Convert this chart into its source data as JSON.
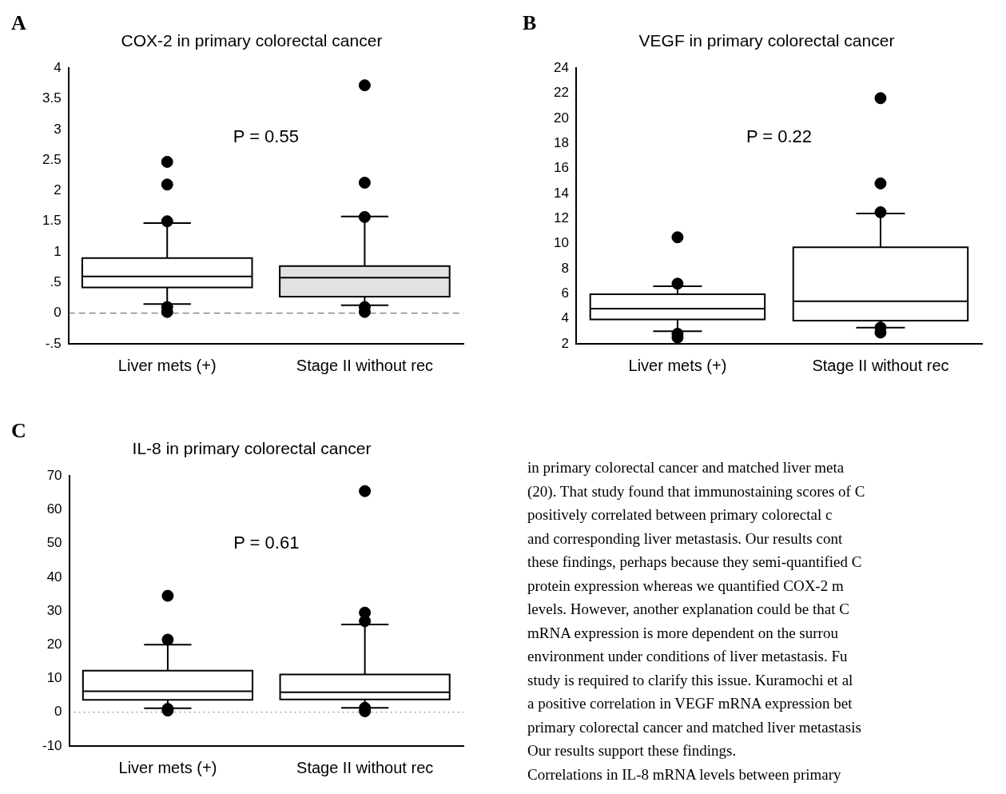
{
  "chart_data": [
    {
      "type": "box",
      "title": "COX-2 in primary colorectal cancer",
      "annotations": [
        "A",
        "P = 0.55"
      ],
      "categories": [
        "Liver mets (+)",
        "Stage II without rec"
      ],
      "colors": [
        "#ffffff",
        "#e2e2e2"
      ],
      "marker": "circle",
      "boxes": [
        {
          "low": 0.15,
          "q1": 0.42,
          "median": 0.6,
          "q3": 0.9,
          "high": 1.47,
          "outliers": [
            2.47,
            2.1,
            1.5,
            0.1,
            0.02
          ]
        },
        {
          "low": 0.13,
          "q1": 0.27,
          "median": 0.58,
          "q3": 0.77,
          "high": 1.58,
          "outliers": [
            3.72,
            2.13,
            1.57,
            0.1,
            0.02
          ]
        }
      ],
      "ylim": [
        -0.5,
        4
      ],
      "yticks": [
        {
          "value": -0.5,
          "label": "-.5"
        },
        0,
        {
          "value": 0.5,
          "label": ".5"
        },
        1,
        1.5,
        2,
        2.5,
        3,
        3.5,
        4
      ],
      "ref_lines": [
        {
          "axis": "y",
          "value": 0,
          "line_style": "dashed",
          "color": "#555555"
        }
      ]
    },
    {
      "type": "box",
      "title": "VEGF in primary colorectal cancer",
      "annotations": [
        "B",
        "P = 0.22"
      ],
      "categories": [
        "Liver mets (+)",
        "Stage II without rec"
      ],
      "colors": [
        "#ffffff",
        "#ffffff"
      ],
      "marker": "circle",
      "boxes": [
        {
          "low": 3.0,
          "q1": 3.95,
          "median": 4.8,
          "q3": 5.95,
          "high": 6.6,
          "outliers": [
            10.5,
            6.8,
            2.8,
            2.5
          ]
        },
        {
          "low": 3.3,
          "q1": 3.85,
          "median": 5.4,
          "q3": 9.7,
          "high": 12.4,
          "outliers": [
            21.6,
            14.8,
            12.5,
            3.3,
            2.9
          ]
        }
      ],
      "ylim": [
        2,
        24
      ],
      "yticks": [
        2,
        4,
        6,
        8,
        10,
        12,
        14,
        16,
        18,
        20,
        22,
        24
      ]
    },
    {
      "type": "box",
      "title": "IL-8 in primary colorectal cancer",
      "annotations": [
        "C",
        "P = 0.61"
      ],
      "categories": [
        "Liver mets (+)",
        "Stage II without rec"
      ],
      "colors": [
        "#ffffff",
        "#ffffff"
      ],
      "marker": "circle",
      "boxes": [
        {
          "low": 1.2,
          "q1": 3.7,
          "median": 6.2,
          "q3": 12.3,
          "high": 20,
          "outliers": [
            34.5,
            21.5,
            1,
            0.5
          ]
        },
        {
          "low": 1.3,
          "q1": 3.8,
          "median": 5.9,
          "q3": 11.2,
          "high": 26,
          "outliers": [
            65.5,
            29.5,
            27,
            1.3,
            0.3
          ]
        }
      ],
      "ylim": [
        -10,
        70
      ],
      "yticks": [
        -10,
        0,
        10,
        20,
        30,
        40,
        50,
        60,
        70
      ],
      "ref_lines": [
        {
          "axis": "y",
          "value": 0,
          "line_style": "dotted",
          "color": "#777777"
        }
      ]
    },
    {
      "type": "other",
      "annotations": [
        "in primary colorectal cancer and matched liver meta",
        "(20). That study found that immunostaining scores of C",
        "positively correlated between primary colorectal c",
        "and corresponding liver metastasis. Our results cont",
        "these findings, perhaps because they semi-quantified C",
        "protein expression whereas we quantified COX-2 m",
        "levels. However, another explanation could be that C",
        "mRNA expression is more dependent on the surrou",
        "environment under conditions of liver metastasis. Fu",
        "study is required to clarify this issue. Kuramochi et al",
        "a positive correlation in VEGF mRNA expression bet",
        "primary colorectal cancer and matched liver metastasis",
        "Our results support these findings.",
        "Correlations in IL-8 mRNA levels between primary"
      ]
    }
  ]
}
